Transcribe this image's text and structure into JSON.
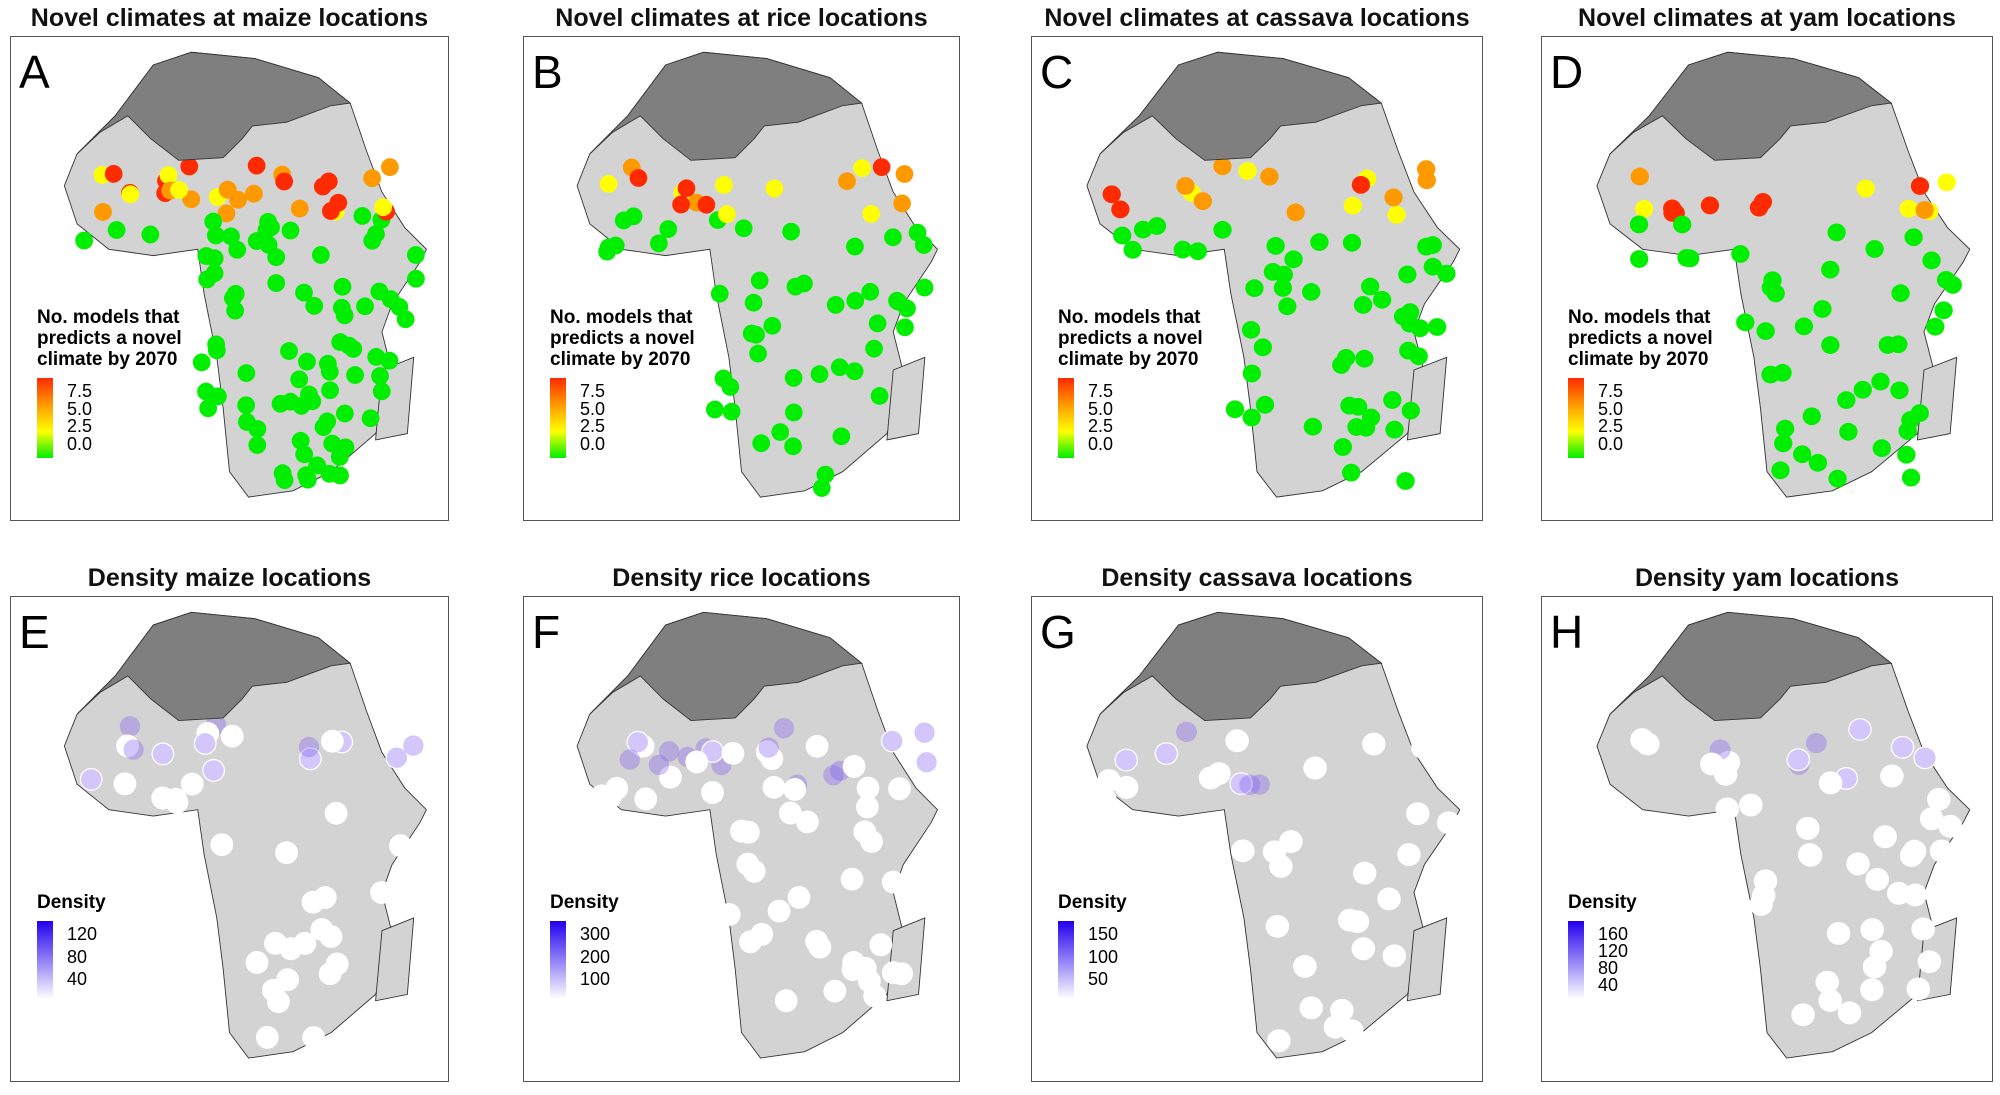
{
  "panels": [
    {
      "letter": "A",
      "title": "Novel climates at maize locations",
      "kind": "novel",
      "legend": {
        "title": [
          "No. models that",
          "predicts a novel",
          "climate by 2070"
        ],
        "labels": [
          "7.5",
          "5.0",
          "2.5",
          "0.0"
        ]
      }
    },
    {
      "letter": "B",
      "title": "Novel climates at rice locations",
      "kind": "novel",
      "legend": {
        "title": [
          "No. models that",
          "predicts a novel",
          "climate by 2070"
        ],
        "labels": [
          "7.5",
          "5.0",
          "2.5",
          "0.0"
        ]
      }
    },
    {
      "letter": "C",
      "title": "Novel climates at cassava locations",
      "kind": "novel",
      "legend": {
        "title": [
          "No. models that",
          "predicts a novel",
          "climate by 2070"
        ],
        "labels": [
          "7.5",
          "5.0",
          "2.5",
          "0.0"
        ]
      }
    },
    {
      "letter": "D",
      "title": "Novel climates at yam locations",
      "kind": "novel",
      "legend": {
        "title": [
          "No. models that",
          "predicts a novel",
          "climate by 2070"
        ],
        "labels": [
          "7.5",
          "5.0",
          "2.5",
          "0.0"
        ]
      }
    },
    {
      "letter": "E",
      "title": "Density maize locations",
      "kind": "density",
      "legend": {
        "title": [
          "Density"
        ],
        "labels": [
          "120",
          "80",
          "40"
        ]
      }
    },
    {
      "letter": "F",
      "title": "Density rice locations",
      "kind": "density",
      "legend": {
        "title": [
          "Density"
        ],
        "labels": [
          "300",
          "200",
          "100"
        ]
      }
    },
    {
      "letter": "G",
      "title": "Density cassava locations",
      "kind": "density",
      "legend": {
        "title": [
          "Density"
        ],
        "labels": [
          "150",
          "100",
          "50"
        ]
      }
    },
    {
      "letter": "H",
      "title": "Density yam locations",
      "kind": "density",
      "legend": {
        "title": [
          "Density"
        ],
        "labels": [
          "160",
          "120",
          "80",
          "40"
        ]
      }
    }
  ],
  "colors": {
    "novel_scale": [
      "#ff2a00",
      "#ff9900",
      "#ffff00",
      "#00ee00"
    ],
    "density_scale": [
      "#2200ee",
      "#ffffff"
    ],
    "land": "#d3d3d3",
    "excluded_region": "#7f7f7f"
  }
}
